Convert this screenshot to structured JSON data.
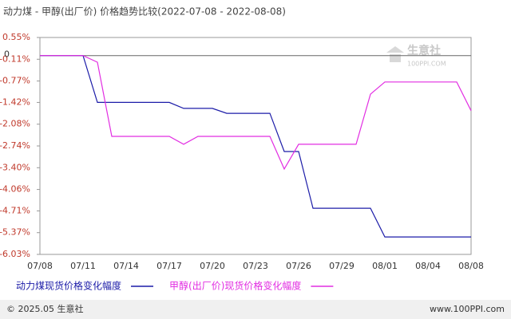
{
  "chart_data": {
    "type": "line",
    "title": "动力煤 - 甲醇(出厂价) 价格趋势比较(2022-07-08 - 2022-08-08)",
    "categories": [
      "07/08",
      null,
      null,
      "07/11",
      null,
      null,
      "07/14",
      null,
      null,
      "07/17",
      null,
      null,
      "07/20",
      null,
      null,
      "07/23",
      null,
      null,
      "07/26",
      null,
      null,
      "07/29",
      null,
      null,
      "08/01",
      null,
      null,
      "08/04",
      null,
      null,
      "08/08"
    ],
    "series": [
      {
        "name": "动力煤现货价格变化幅度",
        "color": "#1c1ca8",
        "values": [
          0,
          0,
          0,
          0,
          -1.42,
          -1.42,
          -1.42,
          -1.42,
          -1.42,
          -1.42,
          -1.6,
          -1.6,
          -1.6,
          -1.75,
          -1.75,
          -1.75,
          -1.75,
          -2.91,
          -2.91,
          -4.63,
          -4.63,
          -4.63,
          -4.63,
          -4.63,
          -5.5,
          -5.5,
          -5.5,
          -5.5,
          -5.5,
          -5.5,
          -5.5
        ]
      },
      {
        "name": "甲醇(出厂价)现货价格变化幅度",
        "color": "#e22ee2",
        "values": [
          0,
          0,
          0,
          0,
          -0.2,
          -2.45,
          -2.45,
          -2.45,
          -2.45,
          -2.45,
          -2.69,
          -2.45,
          -2.45,
          -2.45,
          -2.45,
          -2.45,
          -2.45,
          -3.44,
          -2.69,
          -2.69,
          -2.69,
          -2.69,
          -2.69,
          -1.17,
          -0.8,
          -0.8,
          -0.8,
          -0.8,
          -0.8,
          -0.8,
          -1.67
        ]
      }
    ],
    "ylim": [
      -6.03,
      0.55
    ],
    "yticks": [
      {
        "value": 0.55,
        "label": "0.55%"
      },
      {
        "value": -0.11,
        "label": "-0.11%"
      },
      {
        "value": -0.77,
        "label": "-0.77%"
      },
      {
        "value": -1.42,
        "label": "-1.42%"
      },
      {
        "value": -2.08,
        "label": "-2.08%"
      },
      {
        "value": -2.74,
        "label": "-2.74%"
      },
      {
        "value": -3.4,
        "label": "-3.40%"
      },
      {
        "value": -4.06,
        "label": "-4.06%"
      },
      {
        "value": -4.71,
        "label": "-4.71%"
      },
      {
        "value": -5.37,
        "label": "-5.37%"
      },
      {
        "value": -6.03,
        "label": "-6.03%"
      }
    ],
    "zero_line": 0
  },
  "watermark": {
    "name": "生意社",
    "site": "100PPI.COM"
  },
  "footer": {
    "copyright": "© 2025.05 生意社",
    "url": "www.100PPI.com"
  }
}
